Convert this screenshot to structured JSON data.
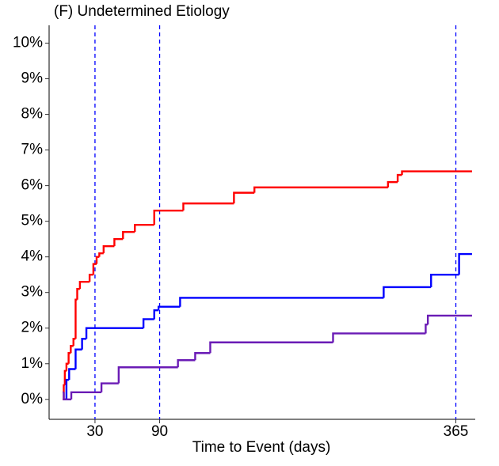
{
  "chart_data": {
    "type": "step",
    "title": "(F) Undetermined Etiology",
    "x_label": "Time to Event (days)",
    "xlim": [
      -12.6,
      383
    ],
    "xticks": [
      30,
      90,
      365
    ],
    "ylim": [
      -0.56,
      10.5
    ],
    "yticks": [
      {
        "value": 0,
        "label": "0%"
      },
      {
        "value": 1,
        "label": "1%"
      },
      {
        "value": 2,
        "label": "2%"
      },
      {
        "value": 3,
        "label": "3%"
      },
      {
        "value": 4,
        "label": "4%"
      },
      {
        "value": 5,
        "label": "5%"
      },
      {
        "value": 6,
        "label": "6%"
      },
      {
        "value": 7,
        "label": "7%"
      },
      {
        "value": 8,
        "label": "8%"
      },
      {
        "value": 9,
        "label": "9%"
      },
      {
        "value": 10,
        "label": "10%"
      }
    ],
    "reference_lines": [
      30,
      90,
      365
    ],
    "reference_color": "#0000ff",
    "series": [
      {
        "color": "#ff0000",
        "x": [
          0,
          1,
          2,
          3.5,
          5.5,
          7.5,
          10,
          12,
          13.5,
          16,
          25,
          28.5,
          31.5,
          34,
          38,
          48,
          56,
          67,
          85,
          112,
          159,
          178,
          302,
          311,
          315,
          380
        ],
        "values": [
          0,
          0.4,
          0.8,
          1.0,
          1.3,
          1.5,
          1.7,
          2.8,
          3.1,
          3.3,
          3.5,
          3.8,
          4.0,
          4.1,
          4.3,
          4.5,
          4.7,
          4.9,
          5.3,
          5.5,
          5.8,
          5.95,
          6.1,
          6.3,
          6.4,
          6.4
        ]
      },
      {
        "color": "#0000ff",
        "x": [
          2,
          3.5,
          6,
          12,
          18,
          22,
          75,
          85,
          89,
          109,
          298,
          342,
          368,
          380
        ],
        "values": [
          0,
          0.55,
          0.85,
          1.4,
          1.7,
          2.0,
          2.25,
          2.5,
          2.6,
          2.85,
          3.15,
          3.5,
          4.08,
          4.08
        ]
      },
      {
        "color": "#6a1bb5",
        "x": [
          0,
          1,
          8,
          36,
          52,
          107,
          123,
          137,
          251,
          337,
          339,
          380
        ],
        "values": [
          0.2,
          0,
          0.2,
          0.45,
          0.9,
          1.1,
          1.3,
          1.6,
          1.85,
          2.1,
          2.35,
          2.35
        ]
      }
    ]
  }
}
